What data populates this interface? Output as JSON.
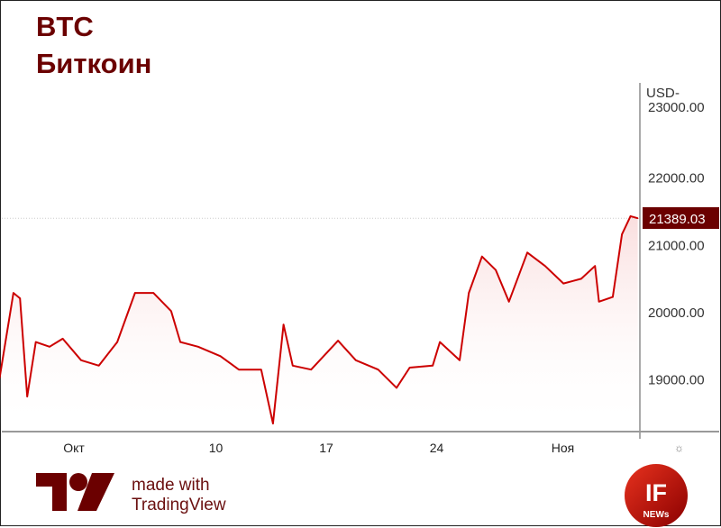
{
  "title": "BTC",
  "subtitle": "Биткоин",
  "branding": {
    "made_with": "made with",
    "tradingview": "TradingView",
    "logo_text": "IF NEWs",
    "settings_icon": "gear-icon"
  },
  "colors": {
    "line": "#cc0000",
    "title": "#6b0000",
    "price_tag": "#6b0000"
  },
  "chart_data": {
    "type": "line",
    "title": "BTC",
    "ylabel": "USD",
    "ylim": [
      18200,
      23300
    ],
    "y_ticks": [
      "19000.00",
      "20000.00",
      "21000.00",
      "22000.00",
      "23000.00"
    ],
    "x_ticks": [
      {
        "date": "2022-10-01",
        "label": "Окт"
      },
      {
        "date": "2022-10-10",
        "label": "10"
      },
      {
        "date": "2022-10-17",
        "label": "17"
      },
      {
        "date": "2022-10-24",
        "label": "24"
      },
      {
        "date": "2022-11-01",
        "label": "Ноя"
      }
    ],
    "last_price": 21389.03,
    "last_price_label": "21389.03",
    "grid": false,
    "points": [
      [
        "2022-09-26T07:00",
        19020
      ],
      [
        "2022-09-27T04:00",
        20280
      ],
      [
        "2022-09-27T14:00",
        20200
      ],
      [
        "2022-09-28T01:00",
        18740
      ],
      [
        "2022-09-28T14:00",
        19550
      ],
      [
        "2022-09-29T11:00",
        19480
      ],
      [
        "2022-09-30T07:00",
        19600
      ],
      [
        "2022-10-01T11:00",
        19280
      ],
      [
        "2022-10-02T14:00",
        19200
      ],
      [
        "2022-10-03T18:00",
        19550
      ],
      [
        "2022-10-04T21:00",
        20280
      ],
      [
        "2022-10-06T01:00",
        20280
      ],
      [
        "2022-10-07T04:00",
        20010
      ],
      [
        "2022-10-07T18:00",
        19550
      ],
      [
        "2022-10-08T21:00",
        19480
      ],
      [
        "2022-10-10T07:00",
        19340
      ],
      [
        "2022-10-11T11:00",
        19140
      ],
      [
        "2022-10-12T21:00",
        19140
      ],
      [
        "2022-10-13T15:00",
        18340
      ],
      [
        "2022-10-14T07:00",
        19810
      ],
      [
        "2022-10-14T21:00",
        19200
      ],
      [
        "2022-10-16T01:00",
        19140
      ],
      [
        "2022-10-17T18:00",
        19570
      ],
      [
        "2022-10-18T21:00",
        19280
      ],
      [
        "2022-10-20T07:00",
        19140
      ],
      [
        "2022-10-21T11:00",
        18870
      ],
      [
        "2022-10-22T07:00",
        19170
      ],
      [
        "2022-10-23T18:00",
        19200
      ],
      [
        "2022-10-24T05:00",
        19550
      ],
      [
        "2022-10-25T11:00",
        19280
      ],
      [
        "2022-10-26T01:00",
        20280
      ],
      [
        "2022-10-26T21:00",
        20820
      ],
      [
        "2022-10-27T18:00",
        20620
      ],
      [
        "2022-10-28T14:00",
        20150
      ],
      [
        "2022-10-29T18:00",
        20880
      ],
      [
        "2022-10-30T21:00",
        20680
      ],
      [
        "2022-11-01T01:00",
        20420
      ],
      [
        "2022-11-02T04:00",
        20490
      ],
      [
        "2022-11-03T01:00",
        20680
      ],
      [
        "2022-11-03T07:00",
        20150
      ],
      [
        "2022-11-04T04:00",
        20220
      ],
      [
        "2022-11-04T18:00",
        21150
      ],
      [
        "2022-11-05T07:00",
        21420
      ],
      [
        "2022-11-05T18:00",
        21389.03
      ]
    ]
  }
}
